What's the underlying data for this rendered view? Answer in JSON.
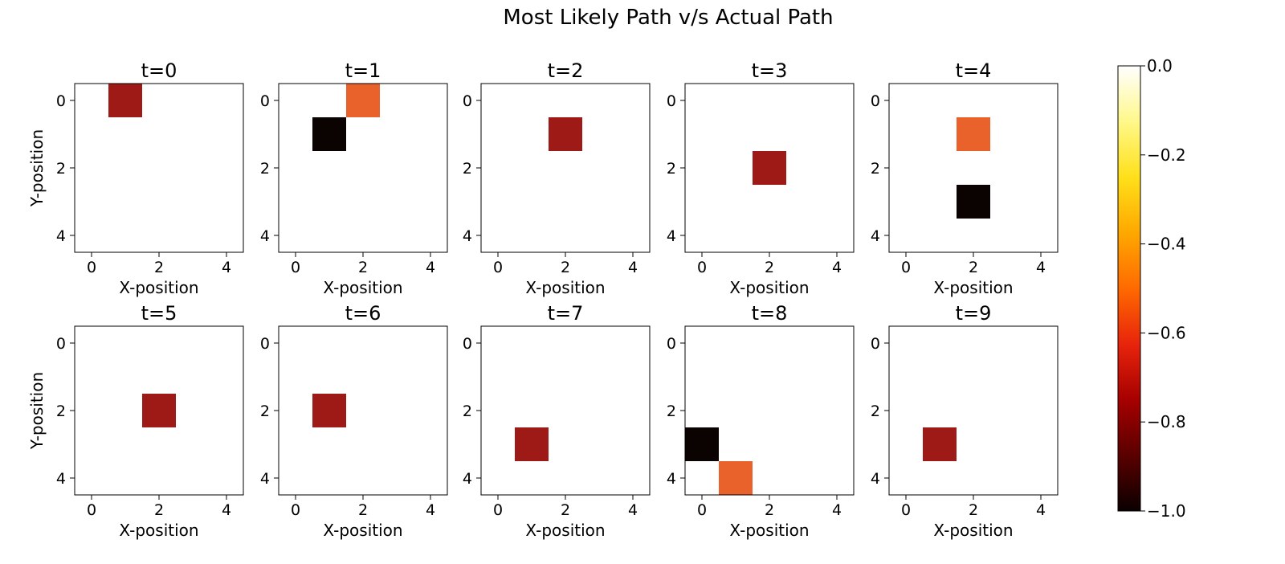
{
  "chart_data": {
    "type": "heatmap",
    "title": "Most Likely Path v/s Actual Path",
    "grid": false,
    "grid_size": [
      5,
      5
    ],
    "xlabel": "X-position",
    "ylabel": "Y-position",
    "xticks": [
      0,
      2,
      4
    ],
    "yticks": [
      0,
      2,
      4
    ],
    "xlim": [
      -0.5,
      4.5
    ],
    "ylim": [
      4.5,
      -0.5
    ],
    "colormap": "hot",
    "colors": {
      "actual": "#9e1a16",
      "most_likely_prob": "#e9612b",
      "most_likely_low": "#0b0202",
      "background": "#ffffff"
    },
    "colorbar": {
      "range": [
        -1.0,
        0.0
      ],
      "ticks": [
        "0.0",
        "−0.2",
        "−0.4",
        "−0.6",
        "−0.8",
        "−1.0"
      ],
      "tick_values": [
        0.0,
        -0.2,
        -0.4,
        -0.6,
        -0.8,
        -1.0
      ],
      "stops": [
        "#0b0000",
        "#5a0000",
        "#a60000",
        "#e8240c",
        "#ff6a00",
        "#ffa800",
        "#ffe01a",
        "#fff88a",
        "#ffffff"
      ]
    },
    "panels": [
      {
        "title": "t=0",
        "cells": [
          {
            "x": 1,
            "y": 0,
            "value": -0.75
          }
        ]
      },
      {
        "title": "t=1",
        "cells": [
          {
            "x": 2,
            "y": 0,
            "value": -0.5
          },
          {
            "x": 1,
            "y": 1,
            "value": -1.0
          }
        ]
      },
      {
        "title": "t=2",
        "cells": [
          {
            "x": 2,
            "y": 1,
            "value": -0.75
          }
        ]
      },
      {
        "title": "t=3",
        "cells": [
          {
            "x": 2,
            "y": 2,
            "value": -0.75
          }
        ]
      },
      {
        "title": "t=4",
        "cells": [
          {
            "x": 2,
            "y": 1,
            "value": -0.5
          },
          {
            "x": 2,
            "y": 3,
            "value": -1.0
          }
        ]
      },
      {
        "title": "t=5",
        "cells": [
          {
            "x": 2,
            "y": 2,
            "value": -0.75
          }
        ]
      },
      {
        "title": "t=6",
        "cells": [
          {
            "x": 1,
            "y": 2,
            "value": -0.75
          }
        ]
      },
      {
        "title": "t=7",
        "cells": [
          {
            "x": 1,
            "y": 3,
            "value": -0.75
          }
        ]
      },
      {
        "title": "t=8",
        "cells": [
          {
            "x": 0,
            "y": 3,
            "value": -1.0
          },
          {
            "x": 1,
            "y": 4,
            "value": -0.5
          }
        ]
      },
      {
        "title": "t=9",
        "cells": [
          {
            "x": 1,
            "y": 3,
            "value": -0.75
          }
        ]
      }
    ]
  }
}
